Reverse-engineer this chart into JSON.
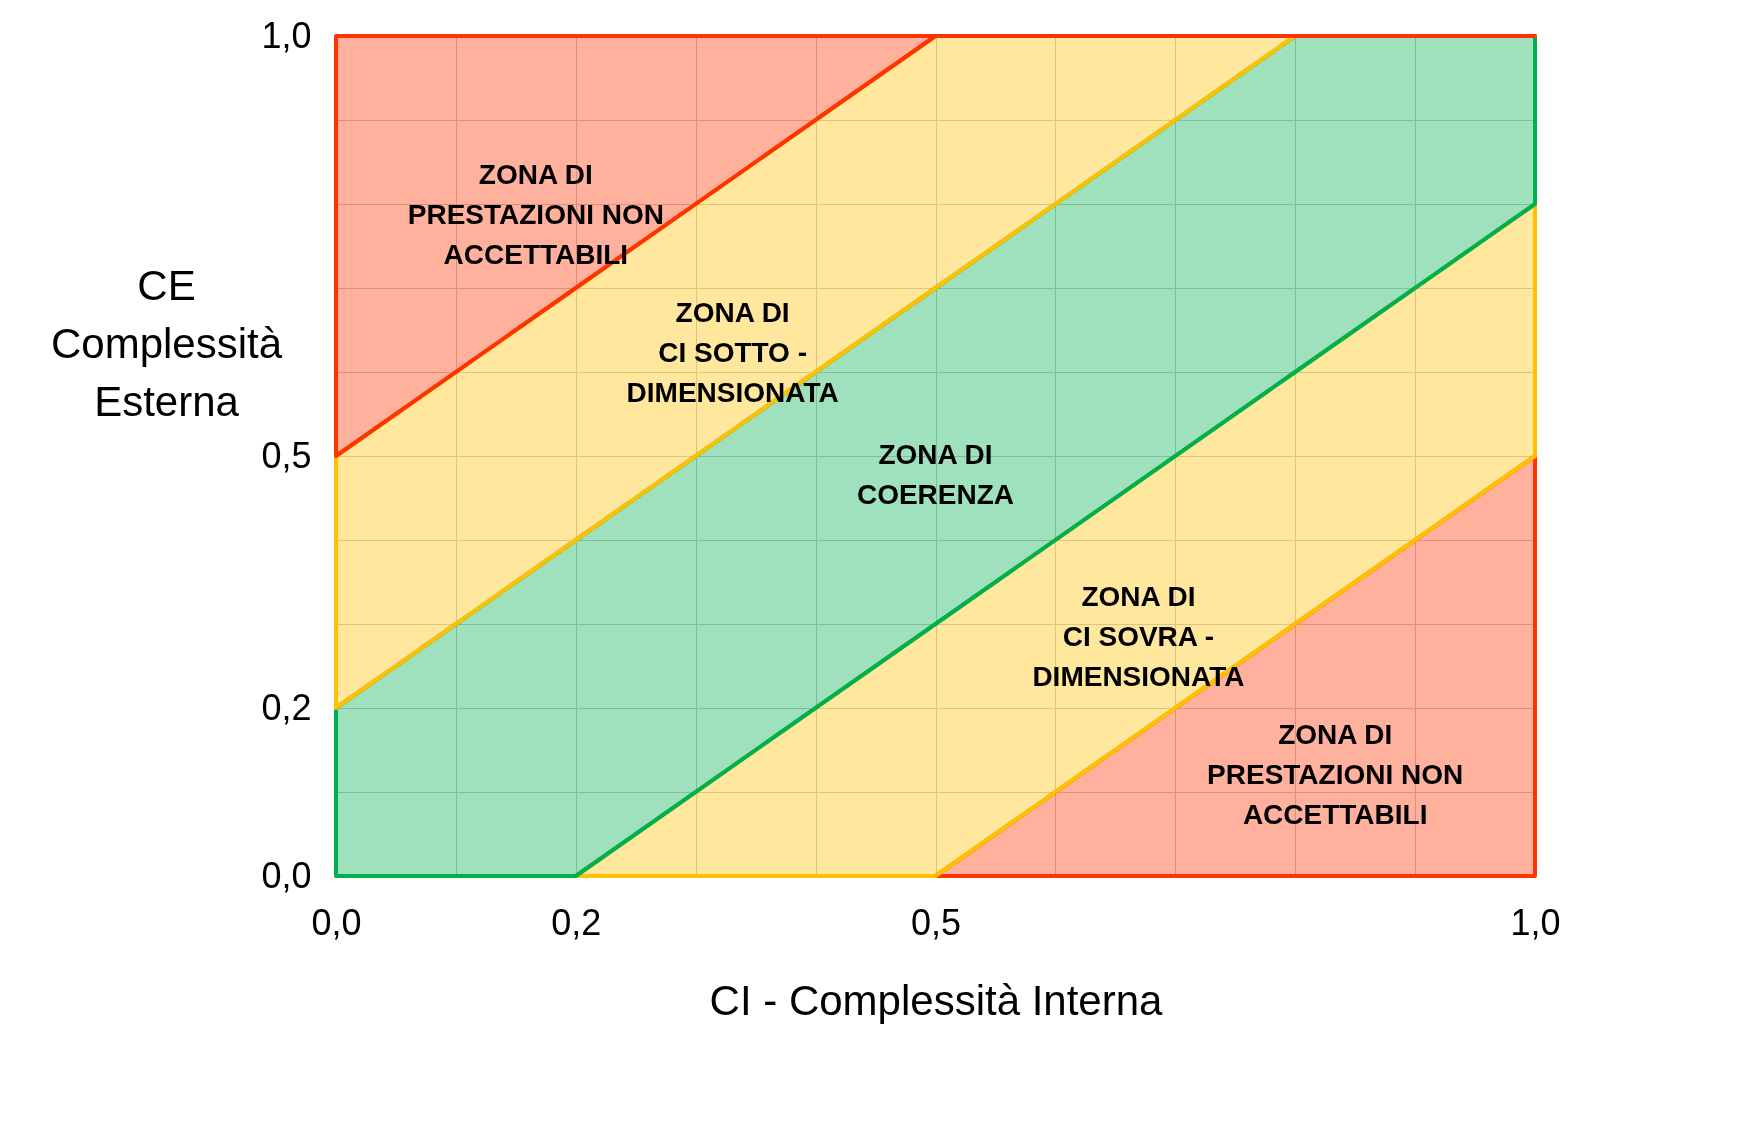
{
  "chart_data": {
    "type": "area",
    "stacked": true,
    "xlabel": "CI - Complessità Interna",
    "ylabel": "CE\nComplessità\nEsterna",
    "x": [
      0,
      0.2,
      0.5,
      0.8,
      1.0
    ],
    "series": [
      {
        "name": "ZONA DI\nPRESTAZIONI NON\nACCETTABILI",
        "color": "#ff3300",
        "values": [
          0,
          0,
          0,
          0.3,
          0.5
        ]
      },
      {
        "name": "ZONA DI\nCI SOVRA -\nDIMENSIONATA",
        "color": "#ffc000",
        "values": [
          0,
          0,
          0.3,
          0.3,
          0.3
        ]
      },
      {
        "name": "ZONA DI\nCOERENZA",
        "color": "#00b050",
        "values": [
          0.2,
          0.4,
          0.4,
          0.4,
          0.2
        ]
      },
      {
        "name": "ZONA DI\nCI SOTTO -\nDIMENSIONATA",
        "color": "#ffc000",
        "values": [
          0.3,
          0.3,
          0.3,
          0,
          0
        ]
      },
      {
        "name": "ZONA DI\nPRESTAZIONI NON\nACCETTABILI",
        "color": "#ff3300",
        "values": [
          0.5,
          0.3,
          0,
          0,
          0
        ]
      }
    ],
    "xlim": [
      0,
      1
    ],
    "ylim": [
      0,
      1
    ],
    "xticks": [
      {
        "value": 0,
        "label": "0,0"
      },
      {
        "value": 0.1,
        "label": null
      },
      {
        "value": 0.2,
        "label": "0,2"
      },
      {
        "value": 0.3,
        "label": null
      },
      {
        "value": 0.4,
        "label": null
      },
      {
        "value": 0.5,
        "label": "0,5"
      },
      {
        "value": 0.6,
        "label": null
      },
      {
        "value": 0.7,
        "label": null
      },
      {
        "value": 0.8,
        "label": null
      },
      {
        "value": 0.9,
        "label": null
      },
      {
        "value": 1,
        "label": "1,0"
      }
    ],
    "yticks": [
      {
        "value": 0,
        "label": "0,0"
      },
      {
        "value": 0.1,
        "label": null
      },
      {
        "value": 0.2,
        "label": "0,2"
      },
      {
        "value": 0.3,
        "label": null
      },
      {
        "value": 0.4,
        "label": null
      },
      {
        "value": 0.5,
        "label": "0,5"
      },
      {
        "value": 0.6,
        "label": null
      },
      {
        "value": 0.7,
        "label": null
      },
      {
        "value": 0.8,
        "label": null
      },
      {
        "value": 0.9,
        "label": null
      },
      {
        "value": 1,
        "label": "1,0"
      }
    ],
    "grid": true
  }
}
